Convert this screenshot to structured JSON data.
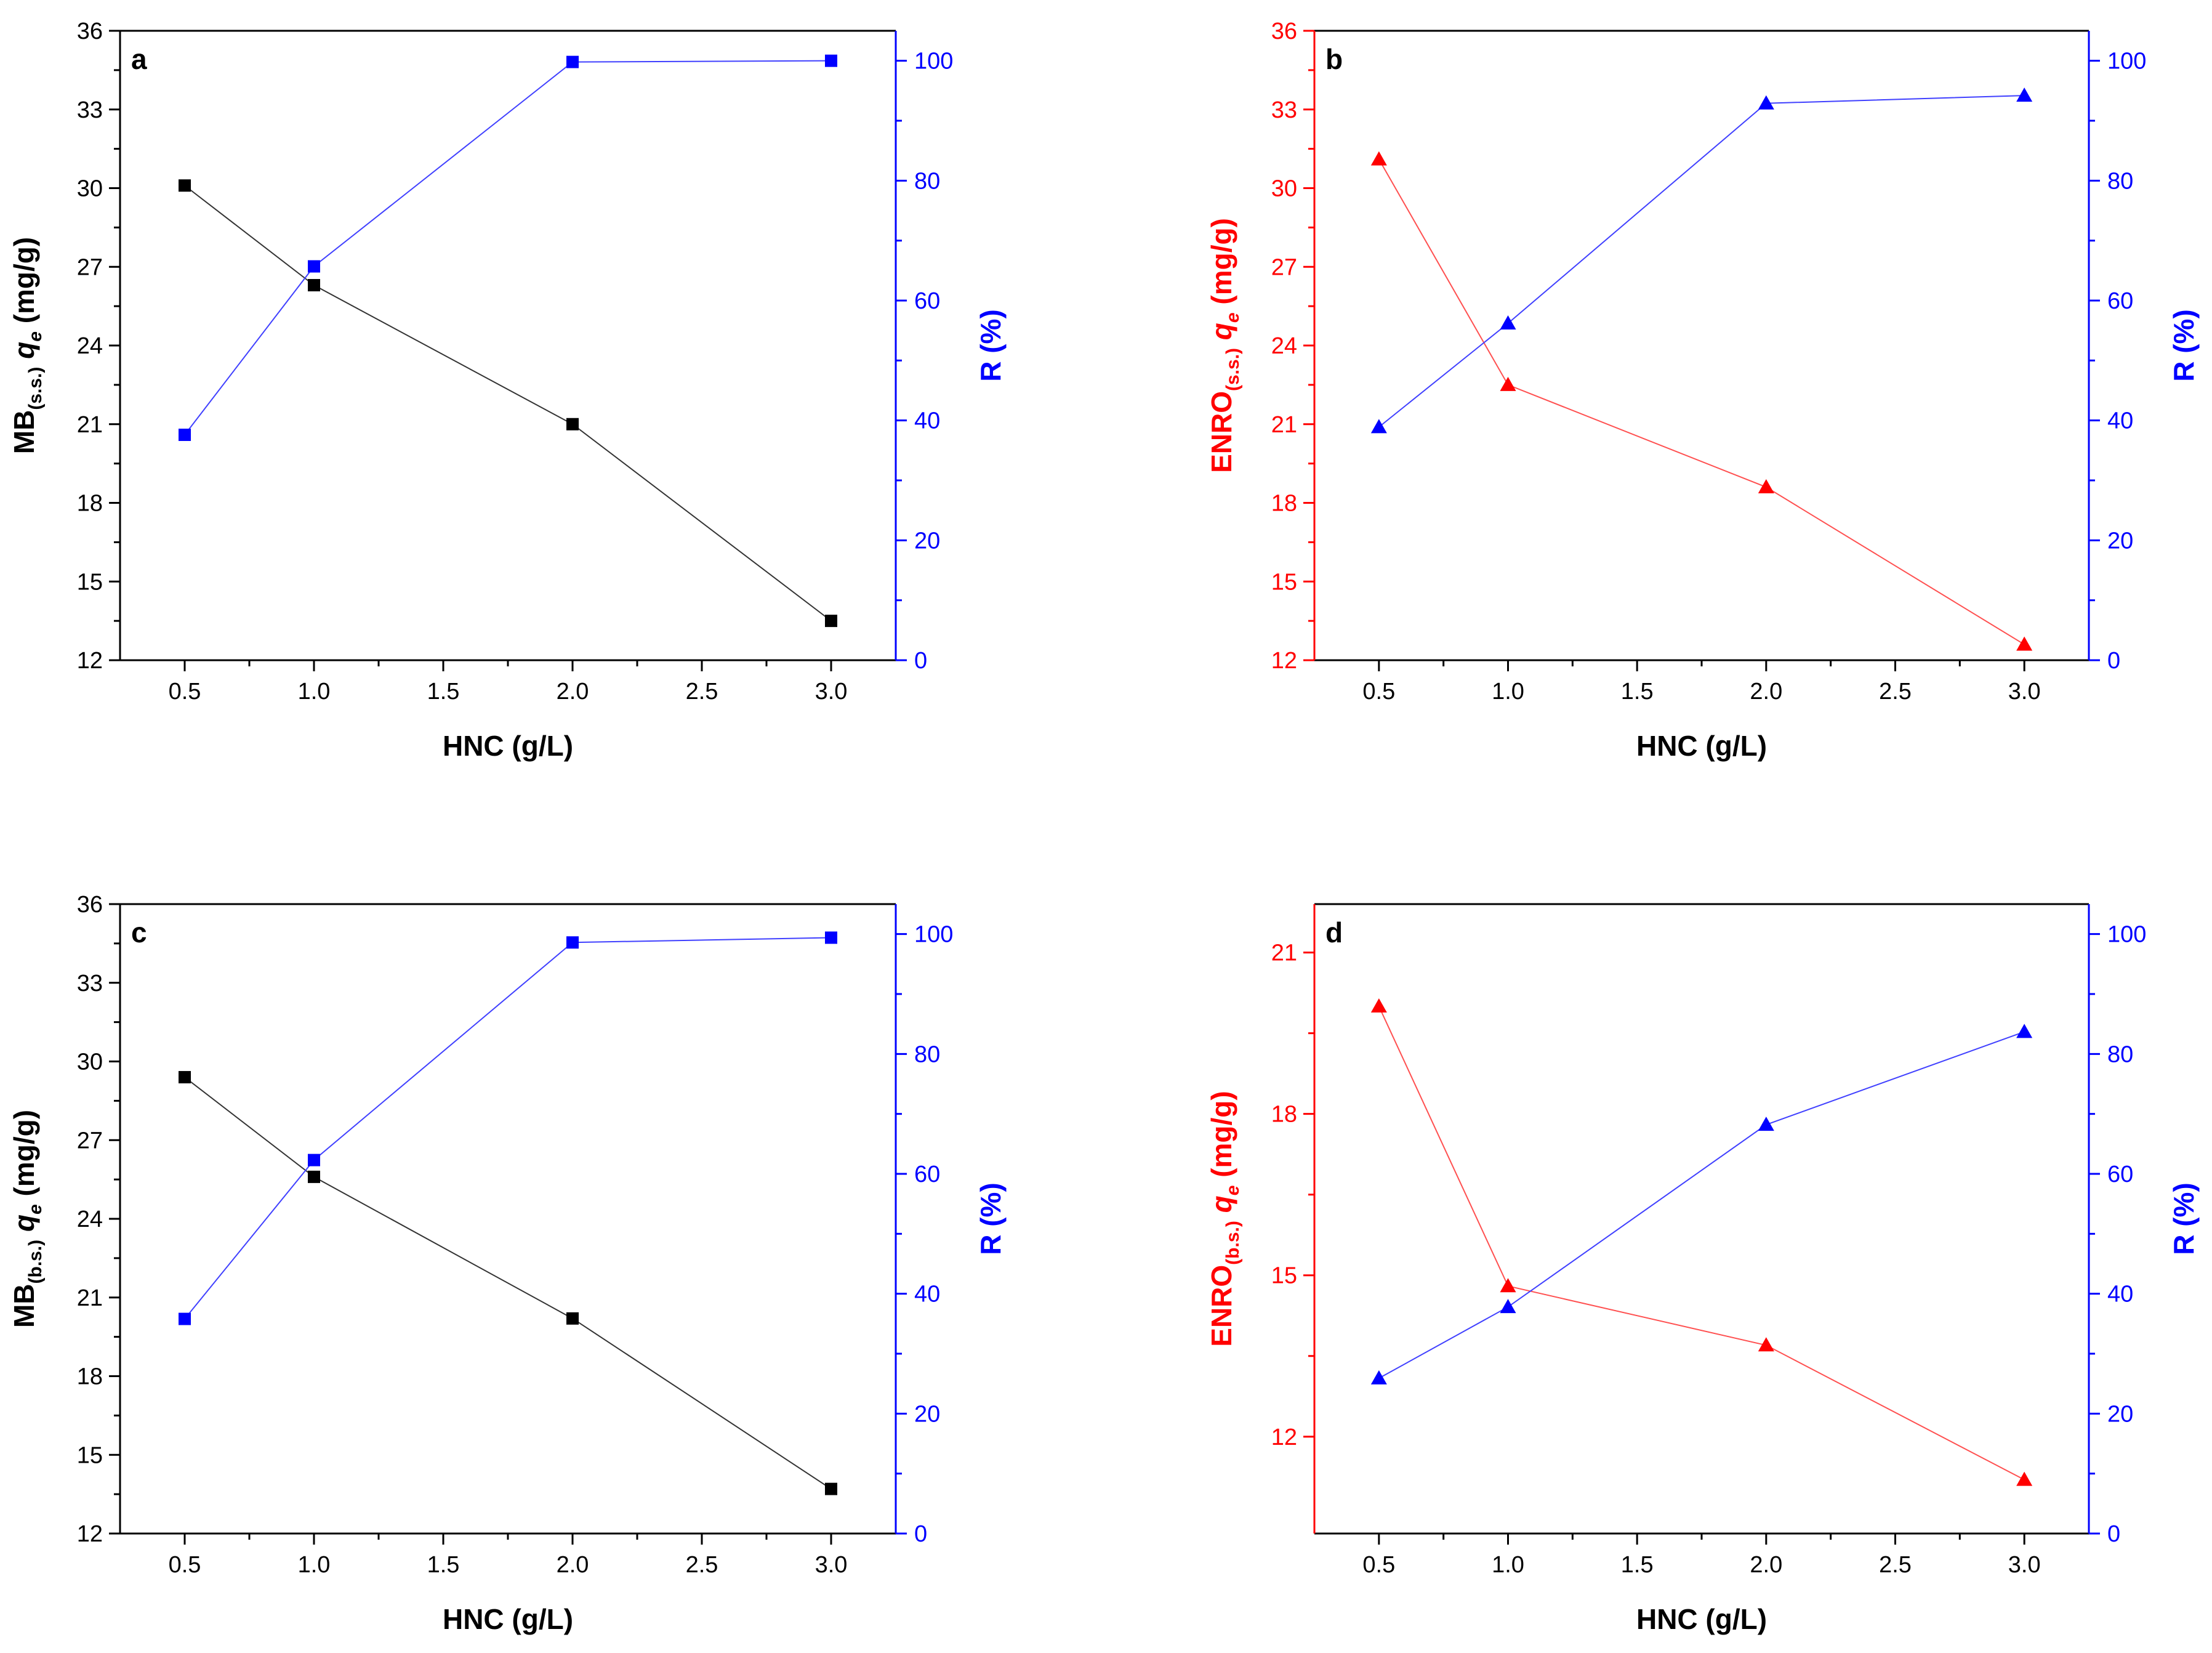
{
  "colors": {
    "axis_black": "#000000",
    "red": "#ff0000",
    "blue": "#0000ff",
    "series_black_line": "#333333",
    "red_line": "#ff5050",
    "blue_line": "#4040ff"
  },
  "panels": [
    {
      "panel_label": "a",
      "xlabel": "HNC (g/L)",
      "ylabel_left_prefix": "MB",
      "ylabel_left_sub": "(s.s.)",
      "ylabel_left_q": "q",
      "ylabel_left_qsub": "e",
      "ylabel_left_units": "(mg/g)",
      "ylabel_right": "R (%)",
      "left_color": "#000000",
      "marker": "square",
      "xticks": [
        "0.5",
        "1.0",
        "1.5",
        "2.0",
        "2.5",
        "3.0"
      ],
      "yticks_left": [
        "12",
        "15",
        "18",
        "21",
        "24",
        "27",
        "30",
        "33",
        "36"
      ],
      "yticks_right": [
        "0",
        "20",
        "40",
        "60",
        "80",
        "100"
      ]
    },
    {
      "panel_label": "b",
      "xlabel": "HNC (g/L)",
      "ylabel_left_prefix": "ENRO",
      "ylabel_left_sub": "(s.s.)",
      "ylabel_left_q": "q",
      "ylabel_left_qsub": "e",
      "ylabel_left_units": "(mg/g)",
      "ylabel_right": "R (%)",
      "left_color": "#ff0000",
      "marker": "triangle",
      "xticks": [
        "0.5",
        "1.0",
        "1.5",
        "2.0",
        "2.5",
        "3.0"
      ],
      "yticks_left": [
        "12",
        "15",
        "18",
        "21",
        "24",
        "27",
        "30",
        "33",
        "36"
      ],
      "yticks_right": [
        "0",
        "20",
        "40",
        "60",
        "80",
        "100"
      ]
    },
    {
      "panel_label": "c",
      "xlabel": "HNC (g/L)",
      "ylabel_left_prefix": "MB",
      "ylabel_left_sub": "(b.s.)",
      "ylabel_left_q": "q",
      "ylabel_left_qsub": "e",
      "ylabel_left_units": "(mg/g)",
      "ylabel_right": "R (%)",
      "left_color": "#000000",
      "marker": "square",
      "xticks": [
        "0.5",
        "1.0",
        "1.5",
        "2.0",
        "2.5",
        "3.0"
      ],
      "yticks_left": [
        "12",
        "15",
        "18",
        "21",
        "24",
        "27",
        "30",
        "33",
        "36"
      ],
      "yticks_right": [
        "0",
        "20",
        "40",
        "60",
        "80",
        "100"
      ]
    },
    {
      "panel_label": "d",
      "xlabel": "HNC (g/L)",
      "ylabel_left_prefix": "ENRO",
      "ylabel_left_sub": "(b.s.)",
      "ylabel_left_q": "q",
      "ylabel_left_qsub": "e",
      "ylabel_left_units": "(mg/g)",
      "ylabel_right": "R (%)",
      "left_color": "#ff0000",
      "marker": "triangle",
      "xticks": [
        "0.5",
        "1.0",
        "1.5",
        "2.0",
        "2.5",
        "3.0"
      ],
      "yticks_left": [
        "12",
        "15",
        "18",
        "21"
      ],
      "yticks_right": [
        "0",
        "20",
        "40",
        "60",
        "80",
        "100"
      ]
    }
  ],
  "chart_data": [
    {
      "type": "line",
      "panel": "a",
      "x": [
        0.5,
        1.0,
        2.0,
        3.0
      ],
      "xlim": [
        0.25,
        3.25
      ],
      "ylim_left": [
        12,
        36
      ],
      "ylim_right": [
        0,
        105
      ],
      "series": [
        {
          "name": "MB(s.s.) qe (mg/g)",
          "axis": "left",
          "values": [
            30.1,
            26.3,
            21.0,
            13.5
          ]
        },
        {
          "name": "R (%)",
          "axis": "right",
          "values": [
            37.6,
            65.7,
            99.8,
            100.0
          ]
        }
      ]
    },
    {
      "type": "line",
      "panel": "b",
      "x": [
        0.5,
        1.0,
        2.0,
        3.0
      ],
      "xlim": [
        0.25,
        3.25
      ],
      "ylim_left": [
        12,
        36
      ],
      "ylim_right": [
        0,
        105
      ],
      "series": [
        {
          "name": "ENRO(s.s.) qe (mg/g)",
          "axis": "left",
          "values": [
            31.1,
            22.5,
            18.6,
            12.6
          ]
        },
        {
          "name": "R (%)",
          "axis": "right",
          "values": [
            38.9,
            56.2,
            92.9,
            94.2
          ]
        }
      ]
    },
    {
      "type": "line",
      "panel": "c",
      "x": [
        0.5,
        1.0,
        2.0,
        3.0
      ],
      "xlim": [
        0.25,
        3.25
      ],
      "ylim_left": [
        12,
        36
      ],
      "ylim_right": [
        0,
        105
      ],
      "series": [
        {
          "name": "MB(b.s.) qe (mg/g)",
          "axis": "left",
          "values": [
            29.4,
            25.6,
            20.2,
            13.7
          ]
        },
        {
          "name": "R (%)",
          "axis": "right",
          "values": [
            35.8,
            62.3,
            98.6,
            99.4
          ]
        }
      ]
    },
    {
      "type": "line",
      "panel": "d",
      "x": [
        0.5,
        1.0,
        2.0,
        3.0
      ],
      "xlim": [
        0.25,
        3.25
      ],
      "ylim_left": [
        10.2,
        21.9
      ],
      "ylim_right": [
        0,
        105
      ],
      "series": [
        {
          "name": "ENRO(b.s.) qe (mg/g)",
          "axis": "left",
          "values": [
            20.0,
            14.8,
            13.7,
            11.2
          ]
        },
        {
          "name": "R (%)",
          "axis": "right",
          "values": [
            25.9,
            37.8,
            68.2,
            83.7
          ]
        }
      ]
    }
  ]
}
